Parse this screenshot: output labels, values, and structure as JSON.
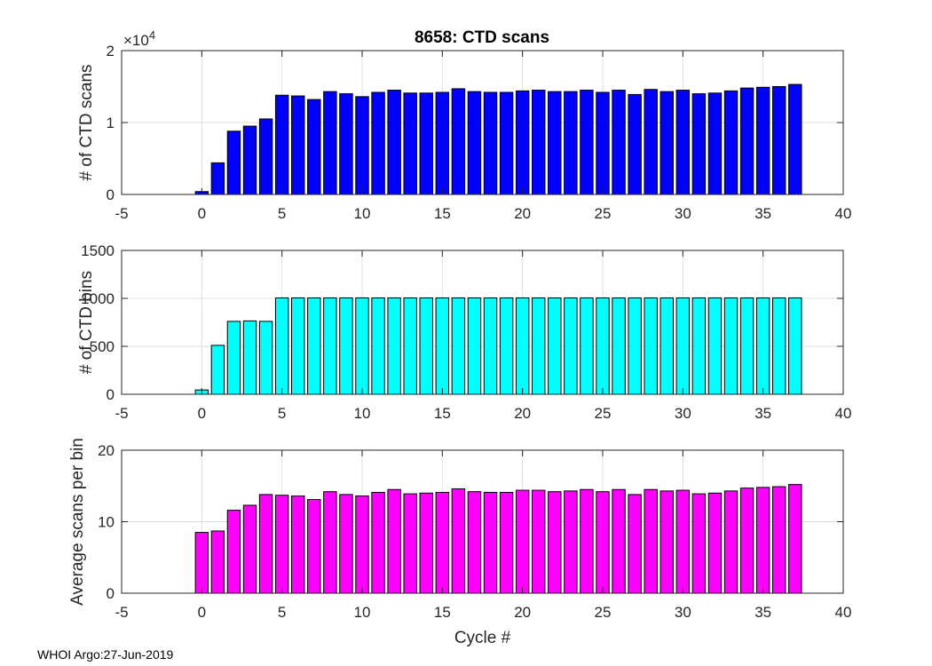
{
  "title": "8658: CTD scans",
  "footer": "WHOI Argo:27-Jun-2019",
  "colors": {
    "scans": "#0000ff",
    "bins": "#00ffff",
    "avg": "#ff00ff",
    "axis": "#262626",
    "grid": "#dfdfdf"
  },
  "chart_data": [
    {
      "type": "bar",
      "ylabel": "# of CTD scans",
      "exponent_label": "×10",
      "exponent": "4",
      "xlim": [
        -5,
        40
      ],
      "ylim": [
        0,
        2
      ],
      "xticks": [
        -5,
        0,
        5,
        10,
        15,
        20,
        25,
        30,
        35,
        40
      ],
      "yticks": [
        0,
        1,
        2
      ],
      "grid": true,
      "x": [
        0,
        1,
        2,
        3,
        4,
        5,
        6,
        7,
        8,
        9,
        10,
        11,
        12,
        13,
        14,
        15,
        16,
        17,
        18,
        19,
        20,
        21,
        22,
        23,
        24,
        25,
        26,
        27,
        28,
        29,
        30,
        31,
        32,
        33,
        34,
        35,
        36,
        37
      ],
      "values": [
        0.04,
        0.44,
        0.88,
        0.95,
        1.05,
        1.38,
        1.37,
        1.32,
        1.43,
        1.4,
        1.36,
        1.42,
        1.45,
        1.41,
        1.41,
        1.42,
        1.47,
        1.43,
        1.42,
        1.42,
        1.44,
        1.45,
        1.43,
        1.43,
        1.45,
        1.42,
        1.45,
        1.39,
        1.46,
        1.43,
        1.45,
        1.4,
        1.41,
        1.44,
        1.48,
        1.49,
        1.5,
        1.53
      ]
    },
    {
      "type": "bar",
      "ylabel": "# of CTD bins",
      "xlim": [
        -5,
        40
      ],
      "ylim": [
        0,
        1500
      ],
      "xticks": [
        -5,
        0,
        5,
        10,
        15,
        20,
        25,
        30,
        35,
        40
      ],
      "yticks": [
        0,
        500,
        1000,
        1500
      ],
      "grid": true,
      "x": [
        0,
        1,
        2,
        3,
        4,
        5,
        6,
        7,
        8,
        9,
        10,
        11,
        12,
        13,
        14,
        15,
        16,
        17,
        18,
        19,
        20,
        21,
        22,
        23,
        24,
        25,
        26,
        27,
        28,
        29,
        30,
        31,
        32,
        33,
        34,
        35,
        36,
        37
      ],
      "values": [
        45,
        510,
        760,
        765,
        760,
        1005,
        1005,
        1005,
        1005,
        1005,
        1005,
        1005,
        1005,
        1005,
        1005,
        1005,
        1005,
        1005,
        1005,
        1005,
        1005,
        1005,
        1005,
        1005,
        1005,
        1005,
        1005,
        1005,
        1005,
        1005,
        1005,
        1005,
        1005,
        1005,
        1005,
        1005,
        1005,
        1005
      ]
    },
    {
      "type": "bar",
      "ylabel": "Average scans per bin",
      "xlabel": "Cycle #",
      "xlim": [
        -5,
        40
      ],
      "ylim": [
        0,
        20
      ],
      "xticks": [
        -5,
        0,
        5,
        10,
        15,
        20,
        25,
        30,
        35,
        40
      ],
      "yticks": [
        0,
        10,
        20
      ],
      "grid": true,
      "x": [
        0,
        1,
        2,
        3,
        4,
        5,
        6,
        7,
        8,
        9,
        10,
        11,
        12,
        13,
        14,
        15,
        16,
        17,
        18,
        19,
        20,
        21,
        22,
        23,
        24,
        25,
        26,
        27,
        28,
        29,
        30,
        31,
        32,
        33,
        34,
        35,
        36,
        37
      ],
      "values": [
        8.5,
        8.7,
        11.6,
        12.3,
        13.8,
        13.7,
        13.6,
        13.1,
        14.2,
        13.8,
        13.6,
        14.1,
        14.5,
        13.9,
        14.0,
        14.1,
        14.6,
        14.2,
        14.1,
        14.1,
        14.4,
        14.4,
        14.2,
        14.3,
        14.5,
        14.2,
        14.5,
        13.8,
        14.5,
        14.3,
        14.4,
        13.9,
        14.0,
        14.3,
        14.7,
        14.8,
        14.9,
        15.2
      ]
    }
  ]
}
